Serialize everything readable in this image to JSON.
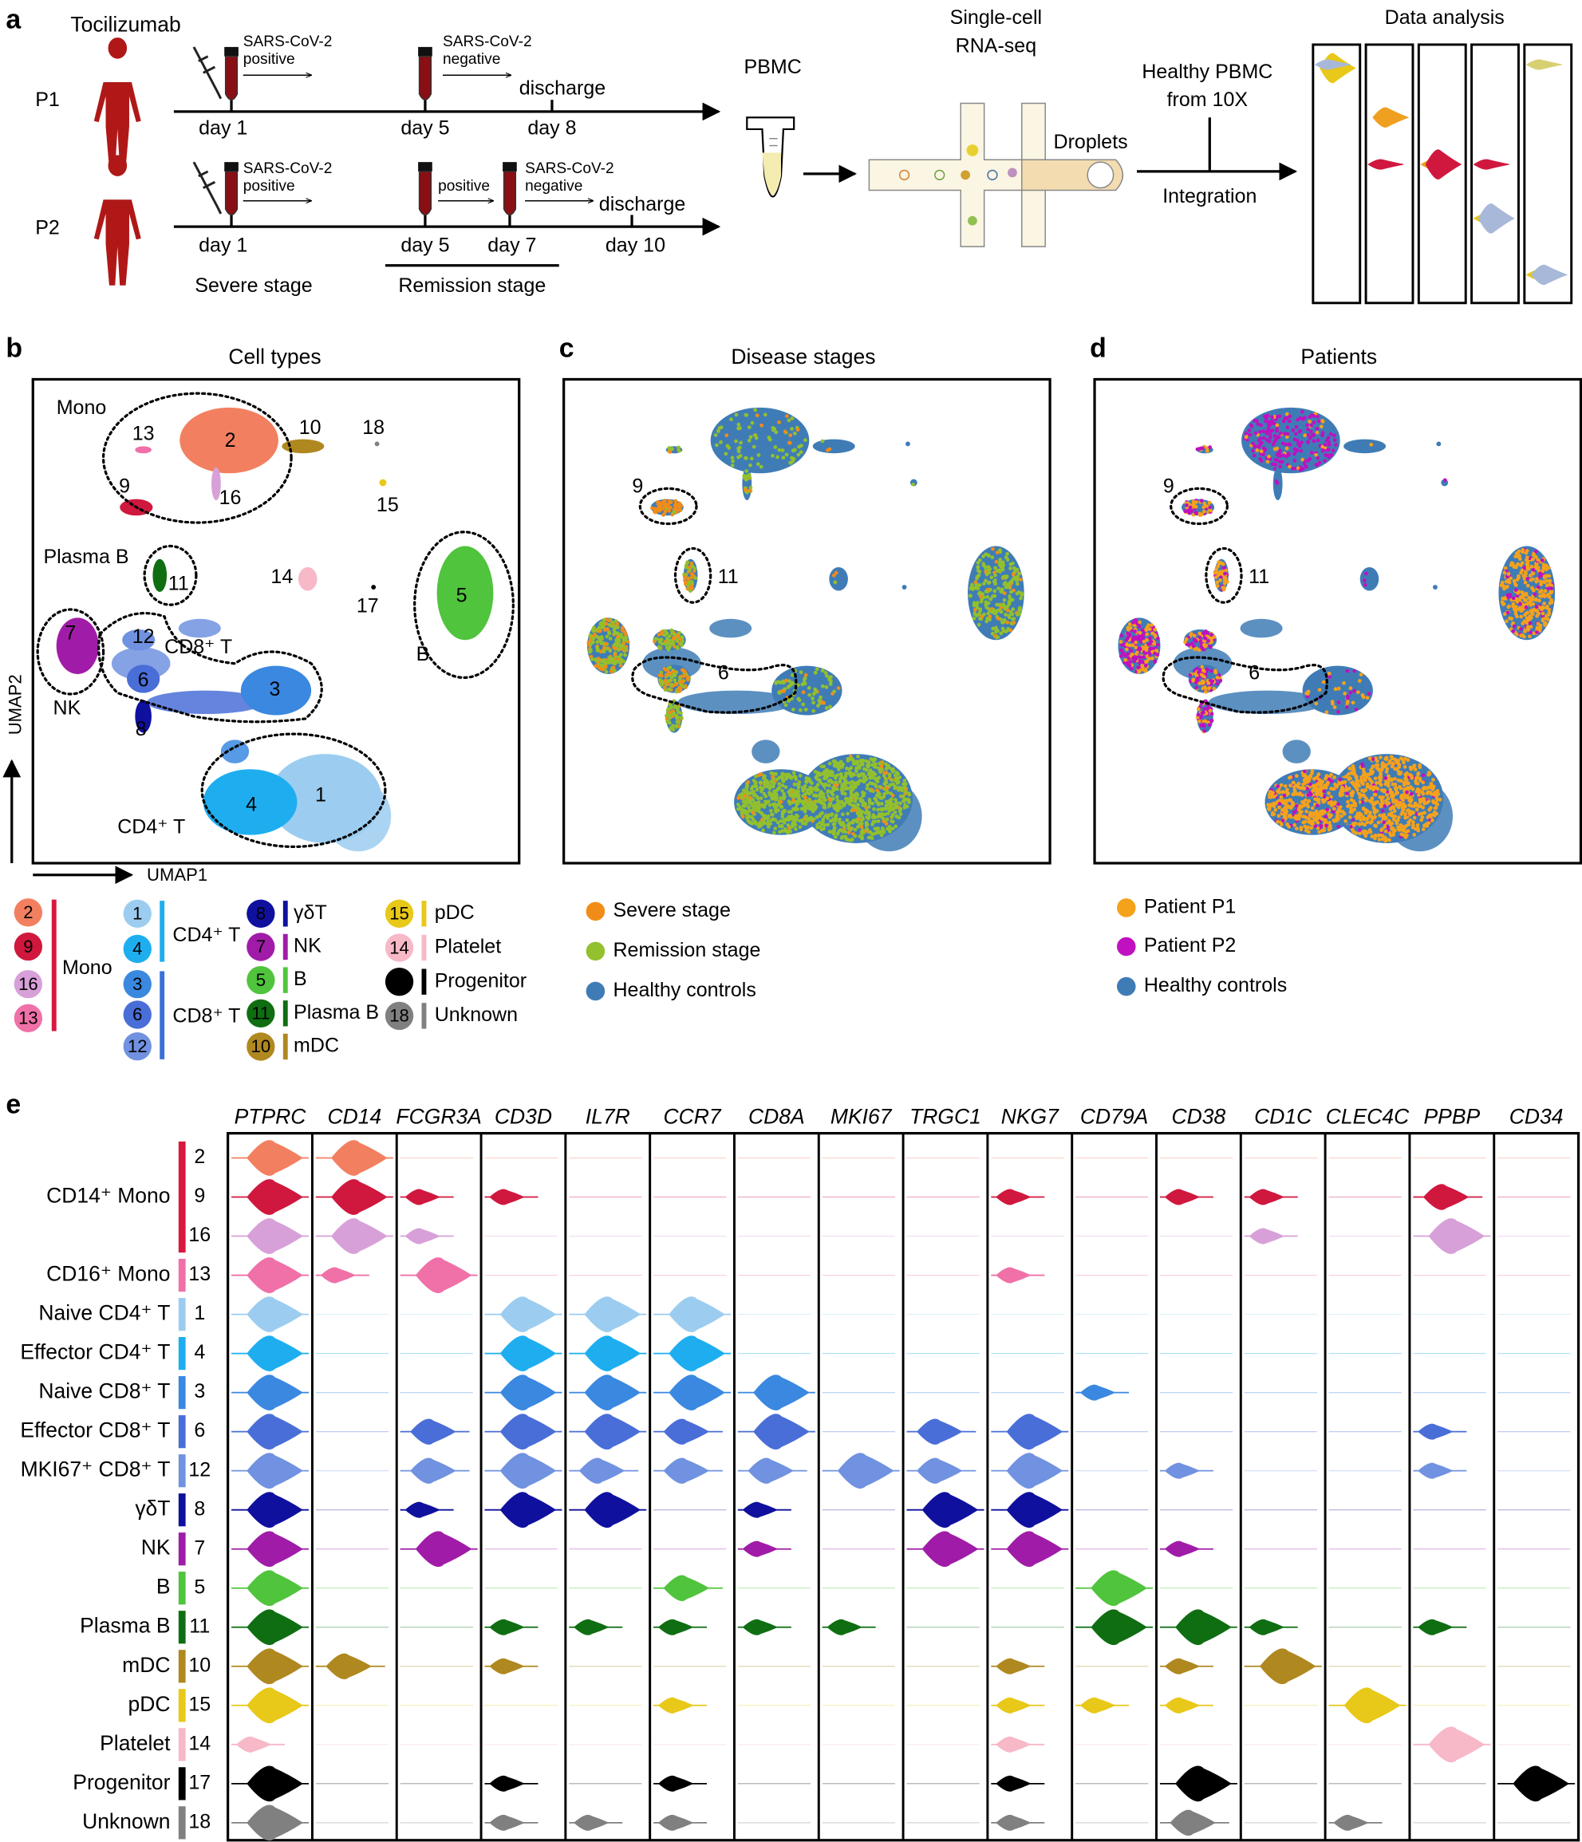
{
  "panel_a": {
    "label": "a",
    "drug": "Tocilizumab",
    "p1": {
      "name": "P1",
      "test1": [
        "SARS-CoV-2",
        "positive"
      ],
      "test2": [
        "SARS-CoV-2",
        "negative"
      ],
      "days": [
        "day 1",
        "day 5",
        "day 8"
      ],
      "discharge": "discharge"
    },
    "p2": {
      "name": "P2",
      "test1": [
        "SARS-CoV-2",
        "positive"
      ],
      "test2": "positive",
      "test3": [
        "SARS-CoV-2",
        "negative"
      ],
      "days": [
        "day 1",
        "day 5",
        "day 7",
        "day 10"
      ],
      "discharge": "discharge"
    },
    "stages": [
      "Severe stage",
      "Remission stage"
    ],
    "pbmc": "PBMC",
    "scrnaseq": [
      "Single-cell",
      "RNA-seq"
    ],
    "droplets": "Droplets",
    "healthy": [
      "Healthy PBMC",
      "from 10X"
    ],
    "integration": "Integration",
    "analysis": "Data analysis"
  },
  "clusters": [
    {
      "id": 1,
      "color": "#9ccdf0"
    },
    {
      "id": 2,
      "color": "#f28060"
    },
    {
      "id": 3,
      "color": "#3a88e0"
    },
    {
      "id": 4,
      "color": "#1eaef0"
    },
    {
      "id": 5,
      "color": "#4fc43c"
    },
    {
      "id": 6,
      "color": "#4a6ed8"
    },
    {
      "id": 7,
      "color": "#a01ca8"
    },
    {
      "id": 8,
      "color": "#10109e"
    },
    {
      "id": 9,
      "color": "#d0183e"
    },
    {
      "id": 10,
      "color": "#b08820"
    },
    {
      "id": 11,
      "color": "#0f6e12"
    },
    {
      "id": 12,
      "color": "#7092e0"
    },
    {
      "id": 13,
      "color": "#f070a8"
    },
    {
      "id": 14,
      "color": "#f7b8c8"
    },
    {
      "id": 15,
      "color": "#e8c818"
    },
    {
      "id": 16,
      "color": "#d8a0d8"
    },
    {
      "id": 17,
      "color": "#000000"
    },
    {
      "id": 18,
      "color": "#808080"
    }
  ],
  "panel_b": {
    "label": "b",
    "title": "Cell types",
    "groups": [
      "Mono",
      "Plasma B",
      "CD8⁺ T",
      "NK",
      "B",
      "CD4⁺ T"
    ],
    "x_axis": "UMAP1",
    "y_axis": "UMAP2",
    "legend": [
      {
        "name": "Mono",
        "clusters": [
          2,
          9,
          16,
          13
        ],
        "color": "#d8193f"
      },
      {
        "name": "CD4⁺ T",
        "clusters": [
          1,
          4
        ],
        "color": "#1eaef0"
      },
      {
        "name": "CD8⁺ T",
        "clusters": [
          3,
          6,
          12
        ],
        "color": "#3a70d8"
      },
      {
        "name": "γδT",
        "clusters": [
          8
        ],
        "color": "#10109e"
      },
      {
        "name": "NK",
        "clusters": [
          7
        ],
        "color": "#a01ca8"
      },
      {
        "name": "B",
        "clusters": [
          5
        ],
        "color": "#4fc43c"
      },
      {
        "name": "Plasma B",
        "clusters": [
          11
        ],
        "color": "#0f6e12"
      },
      {
        "name": "mDC",
        "clusters": [
          10
        ],
        "color": "#b08820"
      },
      {
        "name": "pDC",
        "clusters": [
          15
        ],
        "color": "#e8c818"
      },
      {
        "name": "Platelet",
        "clusters": [
          14
        ],
        "color": "#f7b8c8"
      },
      {
        "name": "Progenitor",
        "clusters": [
          17
        ],
        "color": "#000000"
      },
      {
        "name": "Unknown",
        "clusters": [
          18
        ],
        "color": "#808080"
      }
    ]
  },
  "panel_c": {
    "label": "c",
    "title": "Disease stages",
    "highlight": [
      9,
      11,
      6
    ],
    "legend": [
      {
        "name": "Severe stage",
        "color": "#f28c18"
      },
      {
        "name": "Remission stage",
        "color": "#92c02e"
      },
      {
        "name": "Healthy controls",
        "color": "#3f7cb6"
      }
    ]
  },
  "panel_d": {
    "label": "d",
    "title": "Patients",
    "highlight": [
      9,
      11,
      6
    ],
    "legend": [
      {
        "name": "Patient P1",
        "color": "#f4a21c"
      },
      {
        "name": "Patient P2",
        "color": "#c010c0"
      },
      {
        "name": "Healthy controls",
        "color": "#3f7cb6"
      }
    ]
  },
  "panel_e": {
    "label": "e",
    "genes": [
      "PTPRC",
      "CD14",
      "FCGR3A",
      "CD3D",
      "IL7R",
      "CCR7",
      "CD8A",
      "MKI67",
      "TRGC1",
      "NKG7",
      "CD79A",
      "CD38",
      "CD1C",
      "CLEC4C",
      "PPBP",
      "CD34"
    ],
    "rows": [
      {
        "name": "CD14⁺ Mono",
        "clusters": [
          2,
          9,
          16
        ],
        "color": "#d8193f"
      },
      {
        "name": "CD16⁺ Mono",
        "clusters": [
          13
        ],
        "color": "#f070a8"
      },
      {
        "name": "Naive CD4⁺ T",
        "clusters": [
          1
        ],
        "color": "#9ccdf0"
      },
      {
        "name": "Effector CD4⁺ T",
        "clusters": [
          4
        ],
        "color": "#1eaef0"
      },
      {
        "name": "Naive CD8⁺ T",
        "clusters": [
          3
        ],
        "color": "#3a88e0"
      },
      {
        "name": "Effector CD8⁺ T",
        "clusters": [
          6
        ],
        "color": "#4a6ed8"
      },
      {
        "name": "MKI67⁺ CD8⁺ T",
        "clusters": [
          12
        ],
        "color": "#7092e0"
      },
      {
        "name": "γδT",
        "clusters": [
          8
        ],
        "color": "#10109e"
      },
      {
        "name": "NK",
        "clusters": [
          7
        ],
        "color": "#a01ca8"
      },
      {
        "name": "B",
        "clusters": [
          5
        ],
        "color": "#4fc43c"
      },
      {
        "name": "Plasma B",
        "clusters": [
          11
        ],
        "color": "#0f6e12"
      },
      {
        "name": "mDC",
        "clusters": [
          10
        ],
        "color": "#b08820"
      },
      {
        "name": "pDC",
        "clusters": [
          15
        ],
        "color": "#e8c818"
      },
      {
        "name": "Platelet",
        "clusters": [
          14
        ],
        "color": "#f7b8c8"
      },
      {
        "name": "Progenitor",
        "clusters": [
          17
        ],
        "color": "#000000"
      },
      {
        "name": "Unknown",
        "clusters": [
          18
        ],
        "color": "#808080"
      }
    ],
    "expression": [
      [
        3,
        3,
        0,
        0,
        0,
        0,
        0,
        0,
        0,
        0,
        0,
        0,
        0,
        0,
        0,
        0
      ],
      [
        3,
        3,
        1,
        1,
        0,
        0,
        0,
        0,
        0,
        1,
        0,
        1,
        1,
        0,
        2,
        0
      ],
      [
        3,
        3,
        1,
        0,
        0,
        0,
        0,
        0,
        0,
        0,
        0,
        0,
        1,
        0,
        3,
        0
      ],
      [
        3,
        1,
        3,
        0,
        0,
        0,
        0,
        0,
        0,
        1,
        0,
        0,
        0,
        0,
        0,
        0
      ],
      [
        3,
        0,
        0,
        3,
        3,
        3,
        0,
        0,
        0,
        0,
        0,
        0,
        0,
        0,
        0,
        0
      ],
      [
        3,
        0,
        0,
        3,
        3,
        3,
        0,
        0,
        0,
        0,
        0,
        0,
        0,
        0,
        0,
        0
      ],
      [
        3,
        0,
        0,
        3,
        3,
        3,
        3,
        0,
        0,
        0,
        1,
        0,
        0,
        0,
        0,
        0
      ],
      [
        3,
        0,
        2,
        3,
        3,
        2,
        3,
        0,
        2,
        3,
        0,
        0,
        0,
        0,
        1,
        0
      ],
      [
        3,
        0,
        2,
        3,
        2,
        2,
        2,
        3,
        2,
        3,
        0,
        1,
        0,
        0,
        1,
        0
      ],
      [
        3,
        0,
        1,
        3,
        3,
        0,
        1,
        0,
        3,
        3,
        0,
        0,
        0,
        0,
        0,
        0
      ],
      [
        3,
        0,
        3,
        0,
        0,
        0,
        1,
        0,
        3,
        3,
        0,
        1,
        0,
        0,
        0,
        0
      ],
      [
        3,
        0,
        0,
        0,
        0,
        2,
        0,
        0,
        0,
        0,
        3,
        0,
        0,
        0,
        0,
        0
      ],
      [
        3,
        0,
        0,
        1,
        1,
        1,
        1,
        1,
        0,
        0,
        3,
        3,
        1,
        0,
        1,
        0
      ],
      [
        3,
        2,
        0,
        1,
        0,
        0,
        0,
        0,
        0,
        1,
        0,
        1,
        3,
        0,
        0,
        0
      ],
      [
        3,
        0,
        0,
        0,
        0,
        1,
        0,
        0,
        0,
        1,
        1,
        1,
        0,
        3,
        0,
        0
      ],
      [
        1,
        0,
        0,
        0,
        0,
        0,
        0,
        0,
        0,
        1,
        0,
        0,
        0,
        0,
        3,
        0
      ],
      [
        3,
        0,
        0,
        1,
        0,
        1,
        0,
        0,
        0,
        1,
        0,
        3,
        0,
        0,
        0,
        3
      ],
      [
        3,
        0,
        0,
        1,
        1,
        1,
        0,
        0,
        0,
        1,
        0,
        2,
        0,
        1,
        0,
        0
      ]
    ]
  }
}
